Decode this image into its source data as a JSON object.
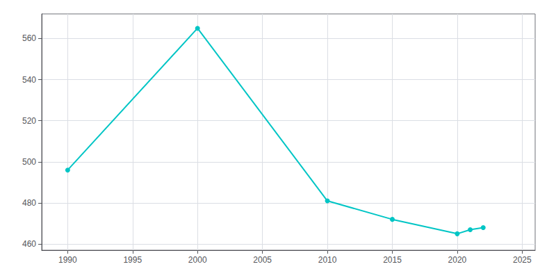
{
  "chart_data": {
    "type": "line",
    "x": [
      1990,
      2000,
      2010,
      2015,
      2020,
      2021,
      2022
    ],
    "values": [
      496,
      565,
      481,
      472,
      465,
      467,
      468
    ],
    "color": "#00C5C5",
    "marker": "circle",
    "xlim": [
      1988,
      2026
    ],
    "xticks": [
      1990,
      1995,
      2000,
      2005,
      2010,
      2015,
      2020,
      2025
    ],
    "ylim": [
      457,
      572
    ],
    "yticks": [
      460,
      480,
      500,
      520,
      540,
      560
    ],
    "grid": true
  }
}
